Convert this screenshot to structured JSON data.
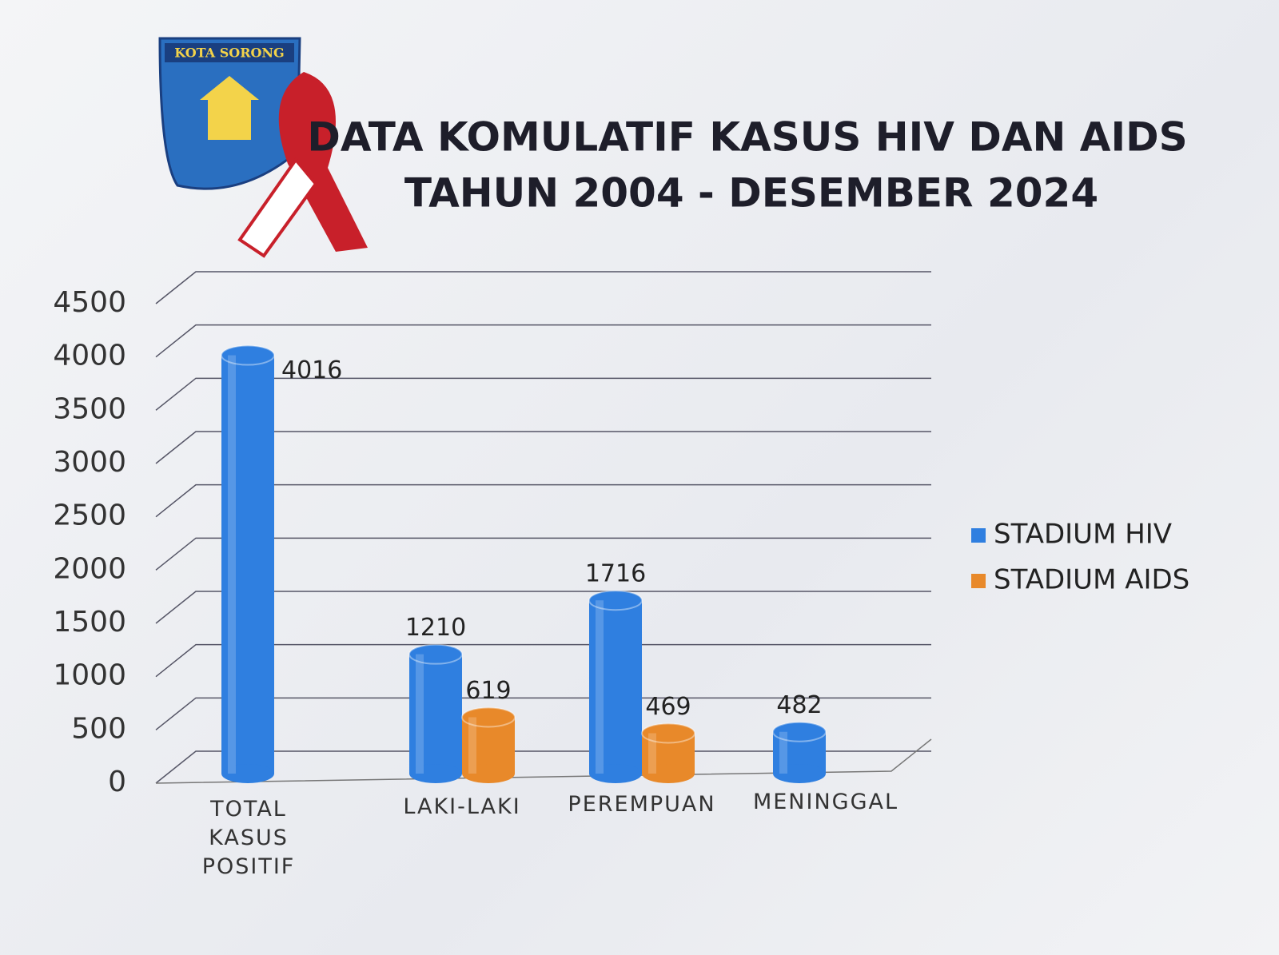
{
  "logo": {
    "text": "KOTA SORONG"
  },
  "chart_data": {
    "type": "bar",
    "title": "DATA KOMULATIF KASUS HIV DAN AIDS",
    "subtitle": "TAHUN 2004 - DESEMBER 2024",
    "categories": [
      "TOTAL KASUS POSITIF",
      "LAKI-LAKI",
      "PEREMPUAN",
      "MENINGGAL"
    ],
    "series": [
      {
        "name": "STADIUM HIV",
        "color": "#2f7fe0",
        "values": [
          4016,
          1210,
          1716,
          482
        ]
      },
      {
        "name": "STADIUM AIDS",
        "color": "#e8892a",
        "values": [
          null,
          619,
          469,
          null
        ]
      }
    ],
    "ylim": [
      0,
      4500
    ],
    "yticks": [
      0,
      500,
      1000,
      1500,
      2000,
      2500,
      3000,
      3500,
      4000,
      4500
    ],
    "grid": true,
    "legend": "right"
  }
}
